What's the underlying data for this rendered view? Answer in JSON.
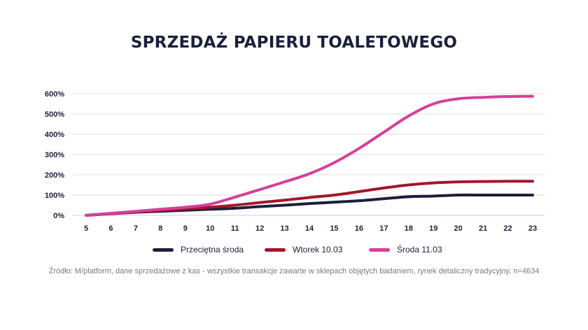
{
  "title": "SPRZEDAŻ PAPIERU TOALETOWEGO",
  "source": "Źródło: M/platform, dane sprzedażowe z kas - wszystkie transakcje zawarte w sklepach objętych badaniem, rynek detaliczny tradycyjny, n=4634",
  "chart_data": {
    "type": "line",
    "title": "SPRZEDAŻ PAPIERU TOALETOWEGO",
    "xlabel": "",
    "ylabel": "",
    "x": [
      5,
      6,
      7,
      8,
      9,
      10,
      11,
      12,
      13,
      14,
      15,
      16,
      17,
      18,
      19,
      20,
      21,
      22,
      23
    ],
    "ylim": [
      0,
      600
    ],
    "y_ticks": [
      "0%",
      "100%",
      "200%",
      "300%",
      "400%",
      "500%",
      "600%"
    ],
    "grid": true,
    "legend_position": "bottom",
    "series": [
      {
        "name": "Przeciętna środa",
        "color": "#1b1f3b",
        "values": [
          0,
          8,
          15,
          20,
          25,
          30,
          35,
          43,
          50,
          58,
          65,
          72,
          82,
          92,
          95,
          100,
          100,
          100,
          100
        ]
      },
      {
        "name": "Wtorek 10.03",
        "color": "#a3162d",
        "values": [
          0,
          8,
          17,
          24,
          32,
          40,
          50,
          63,
          75,
          88,
          100,
          117,
          135,
          150,
          160,
          165,
          167,
          168,
          168
        ]
      },
      {
        "name": "Środa 11.03",
        "color": "#d63f9a",
        "values": [
          0,
          10,
          20,
          30,
          40,
          55,
          90,
          127,
          165,
          205,
          260,
          330,
          410,
          490,
          550,
          575,
          582,
          586,
          587
        ]
      }
    ]
  }
}
